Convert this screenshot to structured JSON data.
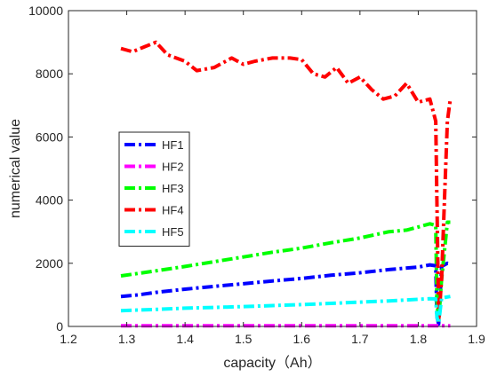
{
  "chart_data": {
    "type": "line",
    "title": "",
    "xlabel": "capacity（Ah）",
    "ylabel": "numerical value",
    "xlim": [
      1.2,
      1.9
    ],
    "ylim": [
      0,
      10000
    ],
    "x_ticks": [
      "1.2",
      "1.3",
      "1.4",
      "1.5",
      "1.6",
      "1.7",
      "1.8",
      "1.9"
    ],
    "y_ticks": [
      "0",
      "2000",
      "4000",
      "6000",
      "8000",
      "10000"
    ],
    "grid": false,
    "legend_position": "middle-left",
    "series": [
      {
        "name": "HF1",
        "color": "#0000ff",
        "points": [
          [
            1.29,
            950
          ],
          [
            1.32,
            1000
          ],
          [
            1.35,
            1080
          ],
          [
            1.4,
            1180
          ],
          [
            1.45,
            1270
          ],
          [
            1.5,
            1350
          ],
          [
            1.55,
            1440
          ],
          [
            1.6,
            1520
          ],
          [
            1.65,
            1620
          ],
          [
            1.7,
            1700
          ],
          [
            1.75,
            1800
          ],
          [
            1.8,
            1880
          ],
          [
            1.82,
            1950
          ],
          [
            1.83,
            1920
          ],
          [
            1.832,
            300
          ],
          [
            1.835,
            80
          ],
          [
            1.84,
            1900
          ],
          [
            1.85,
            2000
          ],
          [
            1.855,
            1980
          ]
        ]
      },
      {
        "name": "HF2",
        "color": "#ff00ff",
        "points": [
          [
            1.29,
            20
          ],
          [
            1.4,
            20
          ],
          [
            1.5,
            20
          ],
          [
            1.6,
            20
          ],
          [
            1.7,
            20
          ],
          [
            1.8,
            20
          ],
          [
            1.83,
            20
          ],
          [
            1.855,
            20
          ]
        ]
      },
      {
        "name": "HF3",
        "color": "#00ff00",
        "points": [
          [
            1.29,
            1600
          ],
          [
            1.32,
            1680
          ],
          [
            1.35,
            1760
          ],
          [
            1.4,
            1900
          ],
          [
            1.45,
            2050
          ],
          [
            1.5,
            2200
          ],
          [
            1.55,
            2350
          ],
          [
            1.6,
            2480
          ],
          [
            1.65,
            2650
          ],
          [
            1.7,
            2800
          ],
          [
            1.75,
            3000
          ],
          [
            1.78,
            3050
          ],
          [
            1.8,
            3150
          ],
          [
            1.82,
            3250
          ],
          [
            1.83,
            3200
          ],
          [
            1.832,
            800
          ],
          [
            1.835,
            200
          ],
          [
            1.84,
            1500
          ],
          [
            1.85,
            3300
          ],
          [
            1.855,
            3300
          ]
        ]
      },
      {
        "name": "HF4",
        "color": "#ff0000",
        "points": [
          [
            1.29,
            8800
          ],
          [
            1.31,
            8700
          ],
          [
            1.33,
            8850
          ],
          [
            1.35,
            9000
          ],
          [
            1.37,
            8600
          ],
          [
            1.4,
            8400
          ],
          [
            1.42,
            8100
          ],
          [
            1.45,
            8200
          ],
          [
            1.48,
            8500
          ],
          [
            1.5,
            8300
          ],
          [
            1.52,
            8400
          ],
          [
            1.55,
            8500
          ],
          [
            1.58,
            8500
          ],
          [
            1.6,
            8450
          ],
          [
            1.62,
            8000
          ],
          [
            1.64,
            7900
          ],
          [
            1.66,
            8200
          ],
          [
            1.68,
            7700
          ],
          [
            1.7,
            7900
          ],
          [
            1.72,
            7500
          ],
          [
            1.74,
            7200
          ],
          [
            1.76,
            7300
          ],
          [
            1.78,
            7700
          ],
          [
            1.8,
            7100
          ],
          [
            1.82,
            7200
          ],
          [
            1.83,
            6500
          ],
          [
            1.835,
            200
          ],
          [
            1.84,
            1500
          ],
          [
            1.845,
            4000
          ],
          [
            1.85,
            6500
          ],
          [
            1.855,
            7200
          ]
        ]
      },
      {
        "name": "HF5",
        "color": "#00ffff",
        "points": [
          [
            1.29,
            500
          ],
          [
            1.35,
            540
          ],
          [
            1.4,
            580
          ],
          [
            1.45,
            600
          ],
          [
            1.5,
            630
          ],
          [
            1.55,
            660
          ],
          [
            1.6,
            690
          ],
          [
            1.65,
            730
          ],
          [
            1.7,
            770
          ],
          [
            1.75,
            810
          ],
          [
            1.8,
            860
          ],
          [
            1.82,
            880
          ],
          [
            1.83,
            870
          ],
          [
            1.832,
            300
          ],
          [
            1.835,
            100
          ],
          [
            1.84,
            900
          ],
          [
            1.855,
            950
          ]
        ]
      }
    ]
  }
}
